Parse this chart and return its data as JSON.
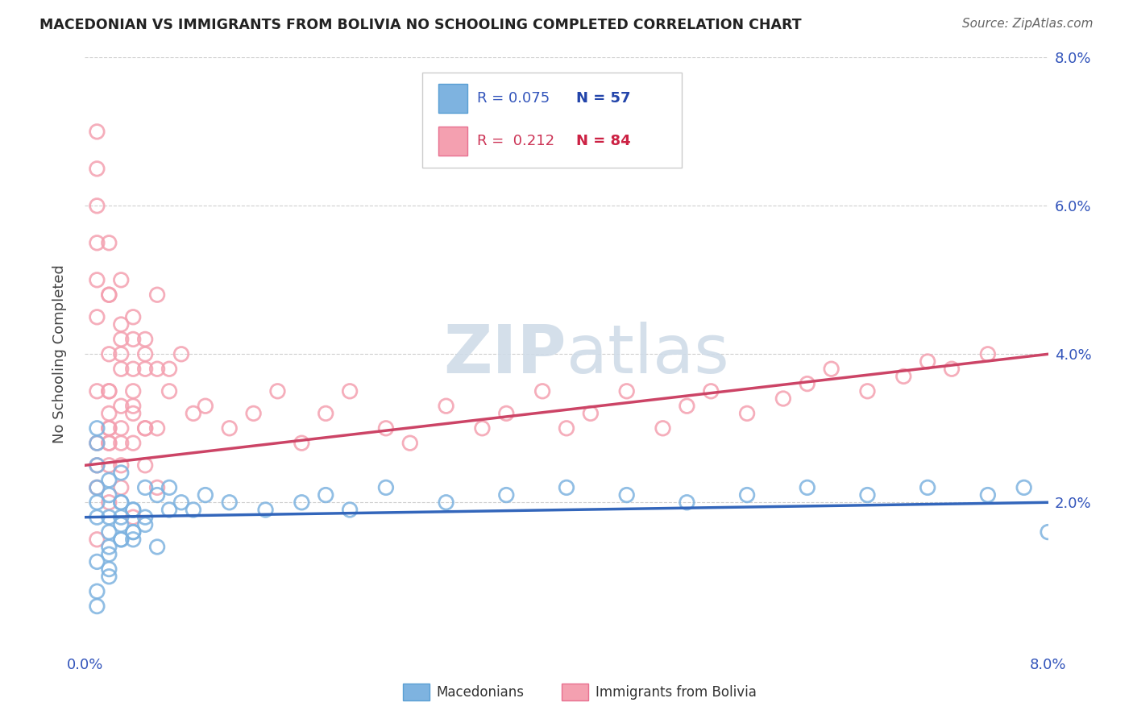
{
  "title": "MACEDONIAN VS IMMIGRANTS FROM BOLIVIA NO SCHOOLING COMPLETED CORRELATION CHART",
  "source": "Source: ZipAtlas.com",
  "ylabel": "No Schooling Completed",
  "xlim": [
    0.0,
    0.08
  ],
  "ylim": [
    0.0,
    0.08
  ],
  "ytick_values": [
    0.02,
    0.04,
    0.06,
    0.08
  ],
  "ytick_labels": [
    "2.0%",
    "4.0%",
    "6.0%",
    "8.0%"
  ],
  "blue_color": "#7EB3E0",
  "pink_color": "#F4A0B0",
  "blue_edge": "#5A9FD4",
  "pink_edge": "#E87090",
  "blue_line_color": "#3366BB",
  "pink_line_color": "#CC4466",
  "blue_R": "0.075",
  "blue_N": "57",
  "pink_R": "0.212",
  "pink_N": "84",
  "text_blue": "#3355BB",
  "text_pink": "#CC3355",
  "text_bold_blue": "#2244AA",
  "text_bold_pink": "#CC2244",
  "watermark_color": "#D0DCE8",
  "grid_color": "#BBBBBB",
  "title_color": "#222222",
  "source_color": "#666666",
  "ylabel_color": "#444444",
  "tick_color": "#3355BB",
  "mac_x": [
    0.001,
    0.002,
    0.001,
    0.003,
    0.001,
    0.002,
    0.004,
    0.001,
    0.002,
    0.001,
    0.003,
    0.002,
    0.001,
    0.003,
    0.002,
    0.004,
    0.003,
    0.001,
    0.002,
    0.001,
    0.005,
    0.003,
    0.002,
    0.004,
    0.001,
    0.006,
    0.003,
    0.002,
    0.004,
    0.005,
    0.007,
    0.006,
    0.005,
    0.008,
    0.007,
    0.009,
    0.01,
    0.012,
    0.015,
    0.018,
    0.02,
    0.022,
    0.025,
    0.03,
    0.035,
    0.04,
    0.045,
    0.05,
    0.055,
    0.06,
    0.065,
    0.07,
    0.075,
    0.078,
    0.08,
    0.003,
    0.004
  ],
  "mac_y": [
    0.018,
    0.016,
    0.012,
    0.02,
    0.022,
    0.014,
    0.019,
    0.025,
    0.01,
    0.008,
    0.015,
    0.021,
    0.006,
    0.018,
    0.013,
    0.016,
    0.024,
    0.028,
    0.011,
    0.02,
    0.017,
    0.015,
    0.023,
    0.019,
    0.03,
    0.014,
    0.02,
    0.018,
    0.016,
    0.022,
    0.019,
    0.021,
    0.018,
    0.02,
    0.022,
    0.019,
    0.021,
    0.02,
    0.019,
    0.02,
    0.021,
    0.019,
    0.022,
    0.02,
    0.021,
    0.022,
    0.021,
    0.02,
    0.021,
    0.022,
    0.021,
    0.022,
    0.021,
    0.022,
    0.016,
    0.017,
    0.015
  ],
  "bol_x": [
    0.001,
    0.002,
    0.001,
    0.003,
    0.001,
    0.002,
    0.004,
    0.001,
    0.002,
    0.001,
    0.003,
    0.002,
    0.001,
    0.003,
    0.002,
    0.004,
    0.003,
    0.001,
    0.002,
    0.001,
    0.005,
    0.003,
    0.002,
    0.004,
    0.001,
    0.006,
    0.003,
    0.002,
    0.004,
    0.005,
    0.007,
    0.006,
    0.005,
    0.008,
    0.007,
    0.009,
    0.01,
    0.012,
    0.014,
    0.016,
    0.018,
    0.02,
    0.022,
    0.025,
    0.027,
    0.03,
    0.033,
    0.035,
    0.038,
    0.04,
    0.042,
    0.045,
    0.048,
    0.05,
    0.052,
    0.055,
    0.058,
    0.06,
    0.062,
    0.065,
    0.068,
    0.07,
    0.072,
    0.075,
    0.003,
    0.004,
    0.005,
    0.006,
    0.002,
    0.003,
    0.004,
    0.005,
    0.002,
    0.003,
    0.005,
    0.004,
    0.006,
    0.002,
    0.002,
    0.003,
    0.004,
    0.001,
    0.002,
    0.001
  ],
  "bol_y": [
    0.028,
    0.035,
    0.045,
    0.03,
    0.05,
    0.04,
    0.038,
    0.06,
    0.025,
    0.055,
    0.042,
    0.032,
    0.065,
    0.038,
    0.048,
    0.033,
    0.044,
    0.07,
    0.028,
    0.035,
    0.04,
    0.05,
    0.03,
    0.045,
    0.022,
    0.038,
    0.028,
    0.055,
    0.035,
    0.042,
    0.038,
    0.048,
    0.03,
    0.04,
    0.035,
    0.032,
    0.033,
    0.03,
    0.032,
    0.035,
    0.028,
    0.032,
    0.035,
    0.03,
    0.028,
    0.033,
    0.03,
    0.032,
    0.035,
    0.03,
    0.032,
    0.035,
    0.03,
    0.033,
    0.035,
    0.032,
    0.034,
    0.036,
    0.038,
    0.035,
    0.037,
    0.039,
    0.038,
    0.04,
    0.025,
    0.028,
    0.03,
    0.022,
    0.035,
    0.04,
    0.032,
    0.038,
    0.028,
    0.033,
    0.025,
    0.042,
    0.03,
    0.048,
    0.02,
    0.022,
    0.018,
    0.025,
    0.03,
    0.015
  ]
}
